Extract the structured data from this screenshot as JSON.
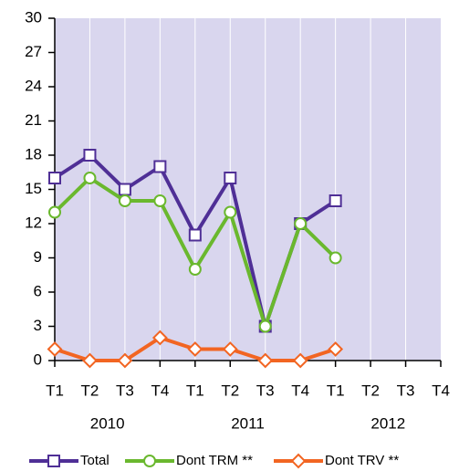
{
  "chart_data": {
    "type": "line",
    "categories": [
      "T1",
      "T2",
      "T3",
      "T4",
      "T1",
      "T2",
      "T3",
      "T4",
      "T1",
      "T2",
      "T3",
      "T4"
    ],
    "groups": [
      "2010",
      "2011",
      "2012"
    ],
    "series": [
      {
        "name": "Total",
        "color": "#4f2f96",
        "marker": "square",
        "values": [
          16,
          18,
          15,
          17,
          11,
          16,
          3,
          12,
          14,
          null,
          null,
          null
        ]
      },
      {
        "name": "Dont TRM **",
        "color": "#6ab82e",
        "marker": "circle",
        "values": [
          13,
          16,
          14,
          14,
          8,
          13,
          3,
          12,
          9,
          null,
          null,
          null
        ]
      },
      {
        "name": "Dont TRV **",
        "color": "#f26522",
        "marker": "diamond",
        "values": [
          1,
          0,
          0,
          2,
          1,
          1,
          0,
          0,
          1,
          null,
          null,
          null
        ]
      }
    ],
    "ylim": [
      0,
      30
    ],
    "yticks": [
      0,
      3,
      6,
      9,
      12,
      15,
      18,
      21,
      24,
      27,
      30
    ],
    "grid": true,
    "legend": "bottom"
  }
}
